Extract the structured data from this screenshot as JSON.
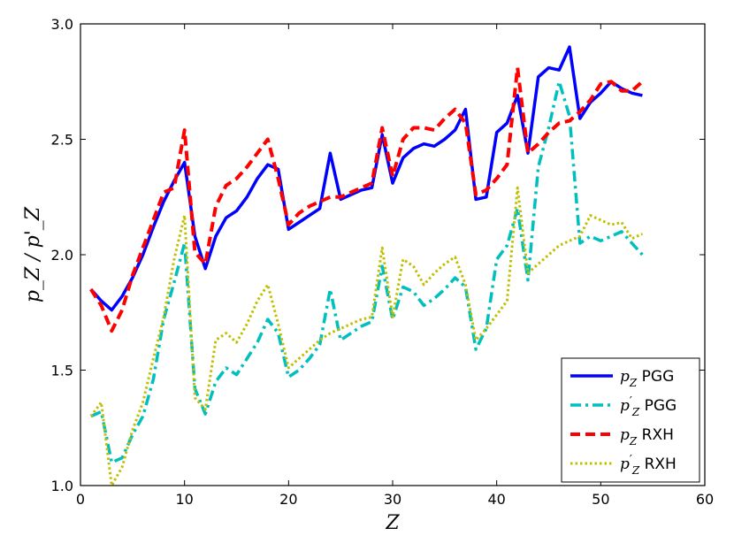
{
  "chart_data": {
    "type": "line",
    "xlabel": "Z",
    "ylabel": "p_Z / p'_Z",
    "xlim": [
      0,
      60
    ],
    "ylim": [
      1.0,
      3.0
    ],
    "xticks": [
      0,
      10,
      20,
      30,
      40,
      50,
      60
    ],
    "yticks": [
      1.0,
      1.5,
      2.0,
      2.5,
      3.0
    ],
    "xtick_labels": [
      "0",
      "10",
      "20",
      "30",
      "40",
      "50",
      "60"
    ],
    "ytick_labels": [
      "1.0",
      "1.5",
      "2.0",
      "2.5",
      "3.0"
    ],
    "grid": false,
    "legend_position": "bottom-right",
    "series": [
      {
        "name": "p_Z PGG",
        "legend_symbol": "p",
        "legend_sub": "Z",
        "legend_prime": "",
        "legend_text": "PGG",
        "color": "#0000ff",
        "style": "solid",
        "x": [
          1,
          2,
          3,
          4,
          5,
          6,
          7,
          8,
          9,
          10,
          11,
          12,
          13,
          14,
          15,
          16,
          17,
          18,
          19,
          20,
          21,
          22,
          23,
          24,
          25,
          26,
          27,
          28,
          29,
          30,
          31,
          32,
          33,
          34,
          35,
          36,
          37,
          38,
          39,
          40,
          41,
          42,
          43,
          44,
          45,
          46,
          47,
          48,
          49,
          50,
          51,
          52,
          53,
          54
        ],
        "values": [
          1.85,
          1.8,
          1.76,
          1.82,
          1.9,
          2.0,
          2.12,
          2.23,
          2.32,
          2.4,
          2.08,
          1.94,
          2.08,
          2.16,
          2.19,
          2.25,
          2.33,
          2.39,
          2.37,
          2.11,
          2.14,
          2.17,
          2.2,
          2.44,
          2.24,
          2.26,
          2.28,
          2.29,
          2.52,
          2.31,
          2.42,
          2.46,
          2.48,
          2.47,
          2.5,
          2.54,
          2.63,
          2.24,
          2.25,
          2.53,
          2.57,
          2.69,
          2.44,
          2.77,
          2.81,
          2.8,
          2.9,
          2.59,
          2.66,
          2.7,
          2.75,
          2.72,
          2.7,
          2.69
        ]
      },
      {
        "name": "p'_Z PGG",
        "legend_symbol": "p",
        "legend_sub": "Z",
        "legend_prime": "′",
        "legend_text": "PGG",
        "color": "#00bfbf",
        "style": "dashdot",
        "x": [
          1,
          2,
          3,
          4,
          5,
          6,
          7,
          8,
          9,
          10,
          11,
          12,
          13,
          14,
          15,
          16,
          17,
          18,
          19,
          20,
          21,
          22,
          23,
          24,
          25,
          26,
          27,
          28,
          29,
          30,
          31,
          32,
          33,
          34,
          35,
          36,
          37,
          38,
          39,
          40,
          41,
          42,
          43,
          44,
          45,
          46,
          47,
          48,
          49,
          50,
          51,
          52,
          53,
          54
        ],
        "values": [
          1.3,
          1.32,
          1.1,
          1.12,
          1.22,
          1.3,
          1.46,
          1.72,
          1.88,
          2.05,
          1.42,
          1.31,
          1.45,
          1.51,
          1.48,
          1.55,
          1.62,
          1.72,
          1.66,
          1.47,
          1.5,
          1.55,
          1.61,
          1.85,
          1.63,
          1.66,
          1.69,
          1.71,
          1.95,
          1.72,
          1.86,
          1.84,
          1.78,
          1.81,
          1.85,
          1.9,
          1.86,
          1.59,
          1.68,
          1.98,
          2.04,
          2.2,
          1.89,
          2.38,
          2.55,
          2.75,
          2.6,
          2.05,
          2.08,
          2.06,
          2.08,
          2.1,
          2.05,
          2.0
        ]
      },
      {
        "name": "p_Z RXH",
        "legend_symbol": "p",
        "legend_sub": "Z",
        "legend_prime": "",
        "legend_text": "RXH",
        "color": "#ff0000",
        "style": "dashed",
        "x": [
          1,
          2,
          3,
          4,
          5,
          6,
          7,
          8,
          9,
          10,
          11,
          12,
          13,
          14,
          15,
          16,
          17,
          18,
          19,
          20,
          21,
          22,
          23,
          24,
          25,
          26,
          27,
          28,
          29,
          30,
          31,
          32,
          33,
          34,
          35,
          36,
          37,
          38,
          39,
          40,
          41,
          42,
          43,
          44,
          45,
          46,
          47,
          48,
          49,
          50,
          51,
          52,
          53,
          54
        ],
        "values": [
          1.85,
          1.78,
          1.67,
          1.76,
          1.91,
          2.03,
          2.15,
          2.27,
          2.29,
          2.54,
          2.01,
          1.96,
          2.21,
          2.3,
          2.33,
          2.38,
          2.44,
          2.5,
          2.33,
          2.13,
          2.18,
          2.21,
          2.23,
          2.25,
          2.25,
          2.27,
          2.29,
          2.31,
          2.55,
          2.34,
          2.5,
          2.55,
          2.55,
          2.54,
          2.59,
          2.63,
          2.57,
          2.26,
          2.28,
          2.33,
          2.39,
          2.81,
          2.44,
          2.48,
          2.53,
          2.57,
          2.58,
          2.62,
          2.67,
          2.74,
          2.75,
          2.71,
          2.71,
          2.75
        ]
      },
      {
        "name": "p'_Z RXH",
        "legend_symbol": "p",
        "legend_sub": "Z",
        "legend_prime": "′",
        "legend_text": "RXH",
        "color": "#bfbf00",
        "style": "dotted",
        "x": [
          1,
          2,
          3,
          4,
          5,
          6,
          7,
          8,
          9,
          10,
          11,
          12,
          13,
          14,
          15,
          16,
          17,
          18,
          19,
          20,
          21,
          22,
          23,
          24,
          25,
          26,
          27,
          28,
          29,
          30,
          31,
          32,
          33,
          34,
          35,
          36,
          37,
          38,
          39,
          40,
          41,
          42,
          43,
          44,
          45,
          46,
          47,
          48,
          49,
          50,
          51,
          52,
          53,
          54
        ],
        "values": [
          1.3,
          1.36,
          1.0,
          1.08,
          1.24,
          1.36,
          1.55,
          1.73,
          1.98,
          2.17,
          1.38,
          1.33,
          1.63,
          1.66,
          1.62,
          1.7,
          1.8,
          1.87,
          1.7,
          1.51,
          1.55,
          1.59,
          1.63,
          1.66,
          1.68,
          1.7,
          1.72,
          1.73,
          2.03,
          1.73,
          1.98,
          1.95,
          1.87,
          1.92,
          1.96,
          1.99,
          1.87,
          1.63,
          1.68,
          1.74,
          1.8,
          2.29,
          1.92,
          1.96,
          2.0,
          2.04,
          2.06,
          2.08,
          2.17,
          2.15,
          2.13,
          2.14,
          2.07,
          2.09
        ]
      }
    ]
  }
}
